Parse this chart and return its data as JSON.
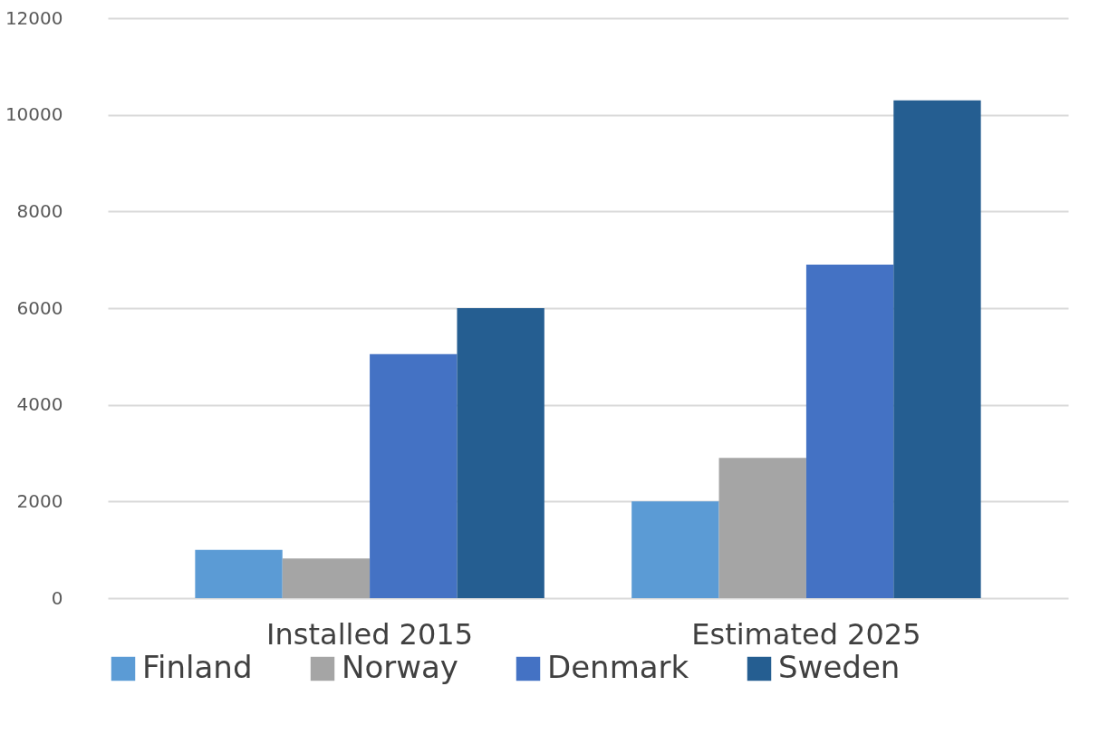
{
  "chart_data": {
    "type": "bar",
    "categories": [
      "Installed 2015",
      "Estimated 2025"
    ],
    "series": [
      {
        "name": "Finland",
        "color": "#5b9bd5",
        "values": [
          1000,
          2000
        ]
      },
      {
        "name": "Norway",
        "color": "#a5a5a5",
        "values": [
          820,
          2900
        ]
      },
      {
        "name": "Denmark",
        "color": "#4472c4",
        "values": [
          5050,
          6900
        ]
      },
      {
        "name": "Sweden",
        "color": "#255e91",
        "values": [
          6000,
          10300
        ]
      }
    ],
    "ylim": [
      0,
      12000
    ],
    "yticks": [
      0,
      2000,
      4000,
      6000,
      8000,
      10000,
      12000
    ],
    "grid": "y",
    "legend": "bottom"
  }
}
